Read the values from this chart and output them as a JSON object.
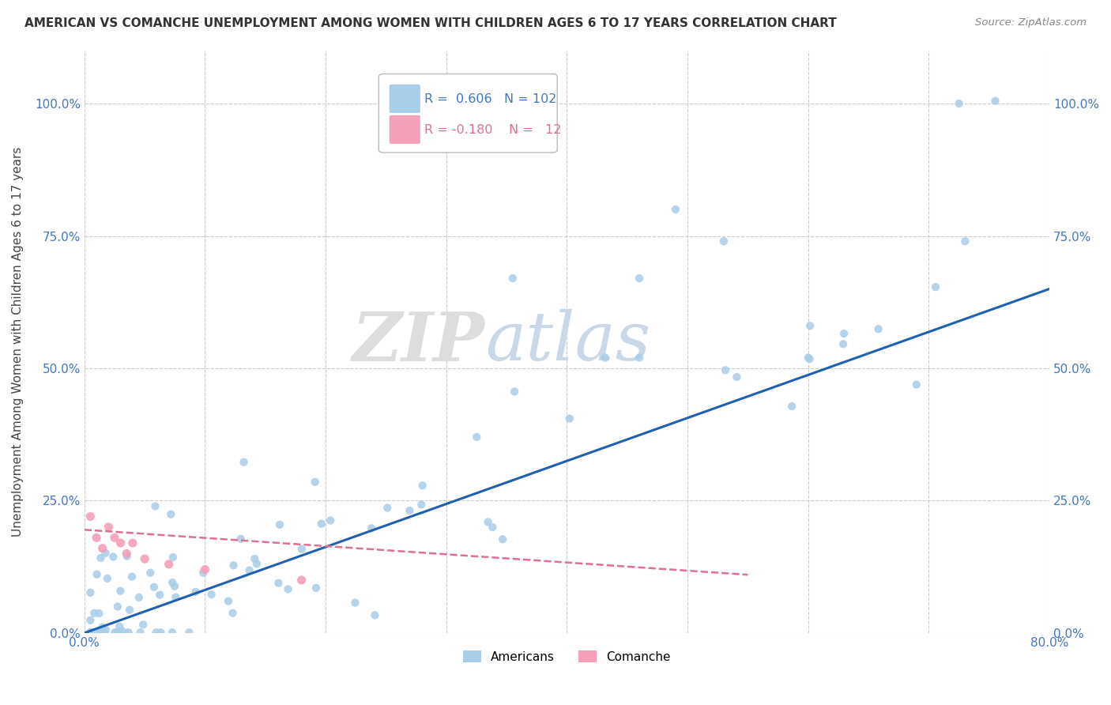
{
  "title": "AMERICAN VS COMANCHE UNEMPLOYMENT AMONG WOMEN WITH CHILDREN AGES 6 TO 17 YEARS CORRELATION CHART",
  "source": "Source: ZipAtlas.com",
  "ylabel": "Unemployment Among Women with Children Ages 6 to 17 years",
  "xlim": [
    0.0,
    0.8
  ],
  "ylim": [
    0.0,
    1.1
  ],
  "y_ticks": [
    0.0,
    0.25,
    0.5,
    0.75,
    1.0
  ],
  "y_tick_labels": [
    "0.0%",
    "25.0%",
    "50.0%",
    "75.0%",
    "100.0%"
  ],
  "x_ticks": [
    0.0,
    0.1,
    0.2,
    0.3,
    0.4,
    0.5,
    0.6,
    0.7,
    0.8
  ],
  "x_tick_labels": [
    "0.0%",
    "",
    "",
    "",
    "",
    "",
    "",
    "",
    "80.0%"
  ],
  "legend_r_american": "0.606",
  "legend_n_american": "102",
  "legend_r_comanche": "-0.180",
  "legend_n_comanche": "12",
  "american_color": "#a8cde8",
  "comanche_color": "#f4a0b8",
  "american_line_color": "#2060b0",
  "comanche_line_color": "#e07090",
  "watermark_zip": "ZIP",
  "watermark_atlas": "atlas",
  "background_color": "#ffffff",
  "tick_color": "#4477bb",
  "label_color": "#444444",
  "american_trend_x0": 0.0,
  "american_trend_y0": 0.0,
  "american_trend_x1": 0.8,
  "american_trend_y1": 0.65,
  "comanche_trend_x0": 0.0,
  "comanche_trend_y0": 0.195,
  "comanche_trend_x1": 0.55,
  "comanche_trend_y1": 0.11
}
